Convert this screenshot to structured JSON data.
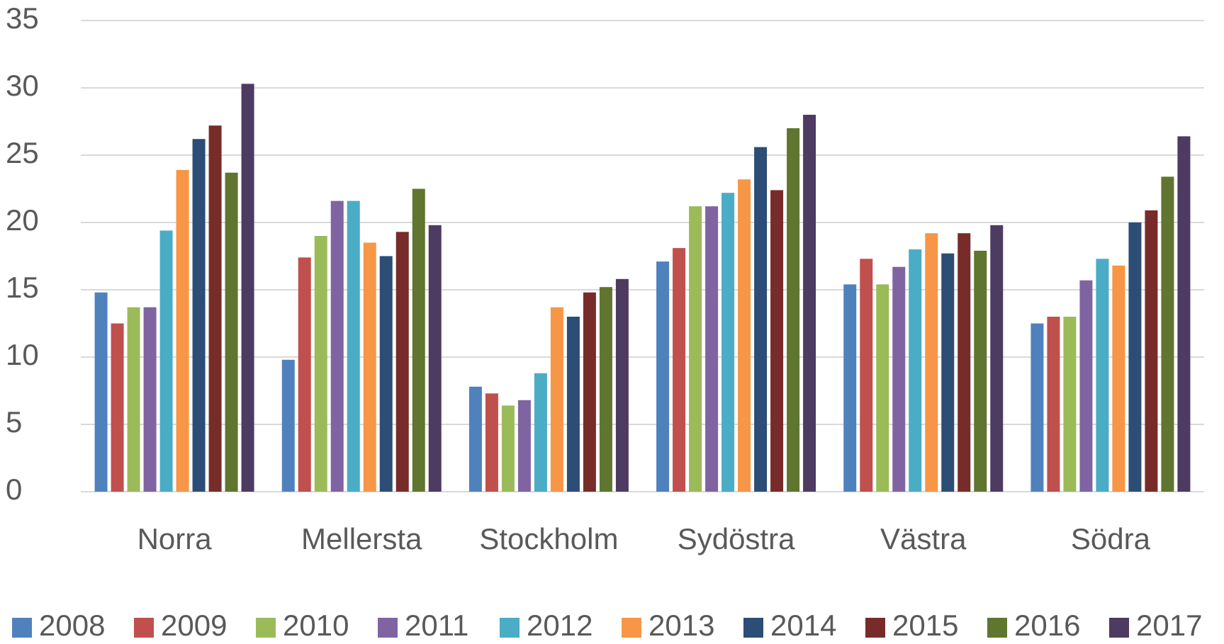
{
  "chart_data": {
    "type": "bar",
    "categories": [
      "Norra",
      "Mellersta",
      "Stockholm",
      "Sydöstra",
      "Västra",
      "Södra"
    ],
    "series": [
      {
        "name": "2008",
        "color": "#4f81bd",
        "values": [
          14.8,
          9.8,
          7.8,
          17.1,
          15.4,
          12.5
        ]
      },
      {
        "name": "2009",
        "color": "#c0504d",
        "values": [
          12.5,
          17.4,
          7.3,
          18.1,
          17.3,
          13.0
        ]
      },
      {
        "name": "2010",
        "color": "#9bbb59",
        "values": [
          13.7,
          19.0,
          6.4,
          21.2,
          15.4,
          13.0
        ]
      },
      {
        "name": "2011",
        "color": "#8064a2",
        "values": [
          13.7,
          21.6,
          6.8,
          21.2,
          16.7,
          15.7
        ]
      },
      {
        "name": "2012",
        "color": "#4bacc6",
        "values": [
          19.4,
          21.6,
          8.8,
          22.2,
          18.0,
          17.3
        ]
      },
      {
        "name": "2013",
        "color": "#f79646",
        "values": [
          23.9,
          18.5,
          13.7,
          23.2,
          19.2,
          16.8
        ]
      },
      {
        "name": "2014",
        "color": "#2c4d75",
        "values": [
          26.2,
          17.5,
          13.0,
          25.6,
          17.7,
          20.0
        ]
      },
      {
        "name": "2015",
        "color": "#772c2a",
        "values": [
          27.2,
          19.3,
          14.8,
          22.4,
          19.2,
          20.9
        ]
      },
      {
        "name": "2016",
        "color": "#5f7530",
        "values": [
          23.7,
          22.5,
          15.2,
          27.0,
          17.9,
          23.4
        ]
      },
      {
        "name": "2017",
        "color": "#4d3b62",
        "values": [
          30.3,
          19.8,
          15.8,
          28.0,
          19.8,
          26.4
        ]
      }
    ],
    "ylim": [
      0,
      35
    ],
    "yticks": [
      0,
      5,
      10,
      15,
      20,
      25,
      30,
      35
    ],
    "grid": true,
    "legend": "bottom"
  }
}
